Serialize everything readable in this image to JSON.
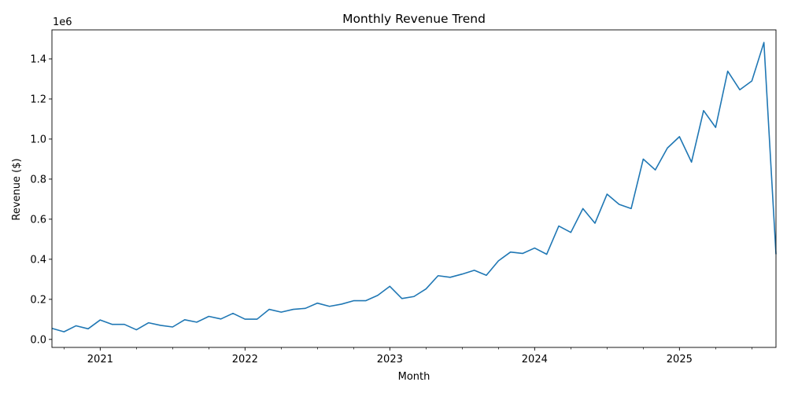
{
  "chart_data": {
    "type": "line",
    "title": "Monthly Revenue Trend",
    "xlabel": "Month",
    "ylabel": "Revenue ($)",
    "y_offset_text": "1e6",
    "x_range": [
      "2020-09",
      "2025-09"
    ],
    "ylim": [
      -40000,
      1545000
    ],
    "grid": false,
    "x_ticks": [
      {
        "date": "2021-01",
        "label": "2021"
      },
      {
        "date": "2022-01",
        "label": "2022"
      },
      {
        "date": "2023-01",
        "label": "2023"
      },
      {
        "date": "2024-01",
        "label": "2024"
      },
      {
        "date": "2025-01",
        "label": "2025"
      }
    ],
    "y_ticks": [
      {
        "value": 0,
        "label": "0.0"
      },
      {
        "value": 200000,
        "label": "0.2"
      },
      {
        "value": 400000,
        "label": "0.4"
      },
      {
        "value": 600000,
        "label": "0.6"
      },
      {
        "value": 800000,
        "label": "0.8"
      },
      {
        "value": 1000000,
        "label": "1.0"
      },
      {
        "value": 1200000,
        "label": "1.2"
      },
      {
        "value": 1400000,
        "label": "1.4"
      }
    ],
    "series": [
      {
        "color": "#1f77b4",
        "x": [
          "2020-09",
          "2020-10",
          "2020-11",
          "2020-12",
          "2021-01",
          "2021-02",
          "2021-03",
          "2021-04",
          "2021-05",
          "2021-06",
          "2021-07",
          "2021-08",
          "2021-09",
          "2021-10",
          "2021-11",
          "2021-12",
          "2022-01",
          "2022-02",
          "2022-03",
          "2022-04",
          "2022-05",
          "2022-06",
          "2022-07",
          "2022-08",
          "2022-09",
          "2022-10",
          "2022-11",
          "2022-12",
          "2023-01",
          "2023-02",
          "2023-03",
          "2023-04",
          "2023-05",
          "2023-06",
          "2023-07",
          "2023-08",
          "2023-09",
          "2023-10",
          "2023-11",
          "2023-12",
          "2024-01",
          "2024-02",
          "2024-03",
          "2024-04",
          "2024-05",
          "2024-06",
          "2024-07",
          "2024-08",
          "2024-09",
          "2024-10",
          "2024-11",
          "2024-12",
          "2025-01",
          "2025-02",
          "2025-03",
          "2025-04",
          "2025-05",
          "2025-06",
          "2025-07",
          "2025-08",
          "2025-09"
        ],
        "y": [
          55000,
          38000,
          68000,
          53000,
          97000,
          75000,
          75000,
          48000,
          83000,
          70000,
          62000,
          98000,
          86000,
          115000,
          102000,
          130000,
          101000,
          101000,
          150000,
          136000,
          150000,
          155000,
          181000,
          165000,
          176000,
          193000,
          193000,
          220000,
          265000,
          204000,
          214000,
          252000,
          318000,
          310000,
          326000,
          345000,
          320000,
          392000,
          436000,
          429000,
          456000,
          425000,
          566000,
          534000,
          653000,
          580000,
          725000,
          674000,
          653000,
          900000,
          846000,
          955000,
          1012000,
          885000,
          1142000,
          1058000,
          1339000,
          1246000,
          1290000,
          1482000,
          425000
        ]
      }
    ]
  }
}
